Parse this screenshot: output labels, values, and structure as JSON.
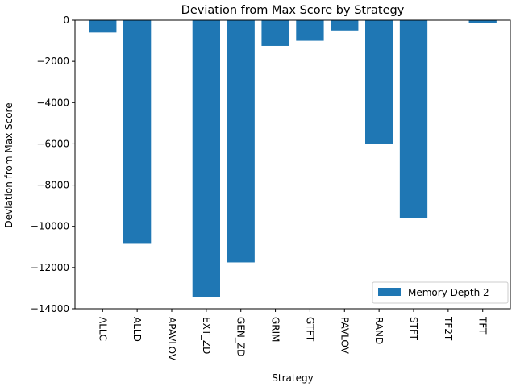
{
  "chart_data": {
    "type": "bar",
    "title": "Deviation from Max Score by Strategy",
    "xlabel": "Strategy",
    "ylabel": "Deviation from Max Score",
    "categories": [
      "ALLC",
      "ALLD",
      "APAVLOV",
      "EXT_ZD",
      "GEN_ZD",
      "GRIM",
      "GTFT",
      "PAVLOV",
      "RAND",
      "STFT",
      "TF2T",
      "TFT"
    ],
    "series": [
      {
        "name": "Memory Depth 2",
        "color": "#1f77b4",
        "values": [
          -600,
          -10850,
          0,
          -13450,
          -11750,
          -1250,
          -1000,
          -500,
          -6000,
          -9600,
          0,
          -150
        ]
      }
    ],
    "ylim": [
      -14000,
      0
    ],
    "yticks": [
      0,
      -2000,
      -4000,
      -6000,
      -8000,
      -10000,
      -12000,
      -14000
    ],
    "ytick_labels": [
      "0",
      "−2000",
      "−4000",
      "−6000",
      "−8000",
      "−10000",
      "−12000",
      "−14000"
    ],
    "xtick_rotation": "vertical",
    "legend": {
      "position": "lower-right"
    },
    "grid": false
  }
}
